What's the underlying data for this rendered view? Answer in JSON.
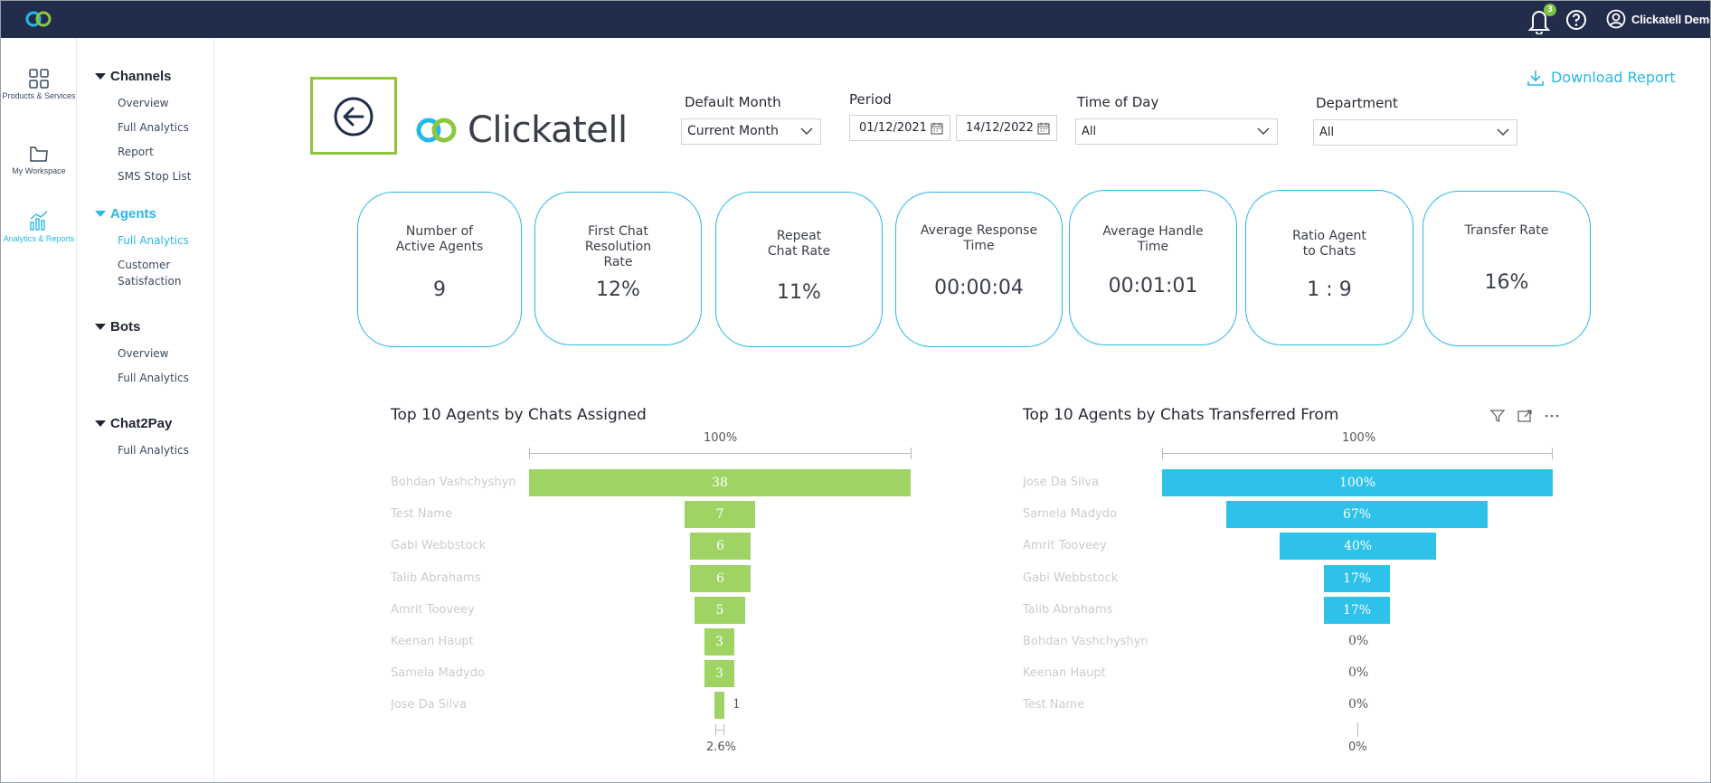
{
  "topbar": {
    "notification_count": "3",
    "user_name": "Clickatell Demo"
  },
  "rail": {
    "items": [
      {
        "label": "Products & Services"
      },
      {
        "label": "My Workspace"
      },
      {
        "label": "Analytics & Reports"
      }
    ]
  },
  "nav": {
    "sections": [
      {
        "title": "Channels",
        "items": [
          "Overview",
          "Full Analytics",
          "Report",
          "SMS Stop List"
        ]
      },
      {
        "title": "Agents",
        "items": [
          "Full Analytics",
          "Customer Satisfaction"
        ]
      },
      {
        "title": "Bots",
        "items": [
          "Overview",
          "Full Analytics"
        ]
      },
      {
        "title": "Chat2Pay",
        "items": [
          "Full Analytics"
        ]
      }
    ]
  },
  "brand": {
    "name": "Clickatell"
  },
  "filters": {
    "default_month": {
      "label": "Default Month",
      "value": "Current Month"
    },
    "period": {
      "label": "Period",
      "start": "01/12/2021",
      "end": "14/12/2022"
    },
    "time_of_day": {
      "label": "Time of Day",
      "value": "All"
    },
    "department": {
      "label": "Department",
      "value": "All"
    }
  },
  "download": {
    "label": "Download Report"
  },
  "kpis": [
    {
      "label": "Number of Active Agents",
      "value": "9"
    },
    {
      "label": "First Chat Resolution Rate",
      "value": "12%"
    },
    {
      "label": "Repeat Chat Rate",
      "value": "11%"
    },
    {
      "label": "Average Response Time",
      "value": "00:00:04"
    },
    {
      "label": "Average Handle Time",
      "value": "00:01:01"
    },
    {
      "label": "Ratio Agent to Chats",
      "value": "1 : 9"
    },
    {
      "label": "Transfer Rate",
      "value": "16%"
    }
  ],
  "chart_data": [
    {
      "type": "bar",
      "title": "Top 10 Agents by Chats Assigned",
      "top_label": "100%",
      "bottom_label": "2.6%",
      "categories": [
        "Bohdan Vashchyshyn",
        "Test Name",
        "Gabi Webbstock",
        "Talib Abrahams",
        "Amrit Tooveey",
        "Keenan Haupt",
        "Samela Madydo",
        "Jose Da Silva"
      ],
      "values": [
        38,
        7,
        6,
        6,
        5,
        3,
        3,
        1
      ],
      "labels": [
        "38",
        "7",
        "6",
        "6",
        "5",
        "3",
        "3",
        "1"
      ],
      "color": "#9fd465"
    },
    {
      "type": "bar",
      "title": "Top 10 Agents by Chats Transferred From",
      "top_label": "100%",
      "bottom_label": "0%",
      "categories": [
        "Jose Da Silva",
        "Samela Madydo",
        "Amrit Tooveey",
        "Gabi Webbstock",
        "Talib Abrahams",
        "Bohdan Vashchyshyn",
        "Keenan Haupt",
        "Test Name"
      ],
      "values": [
        100,
        67,
        40,
        17,
        17,
        0,
        0,
        0
      ],
      "labels": [
        "100%",
        "67%",
        "40%",
        "17%",
        "17%",
        "0%",
        "0%",
        "0%"
      ],
      "color": "#2ec2ea"
    }
  ]
}
